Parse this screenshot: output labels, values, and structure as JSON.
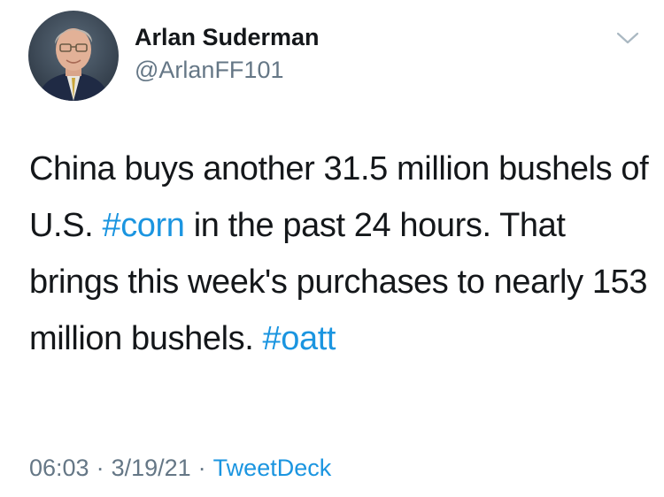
{
  "author": {
    "name": "Arlan Suderman",
    "handle": "@ArlanFF101"
  },
  "tweet": {
    "segments": [
      {
        "text": "China buys another 31.5 million bushels of U.S. ",
        "type": "text"
      },
      {
        "text": "#corn",
        "type": "hashtag"
      },
      {
        "text": " in the past 24 hours. That brings this week's purchases to nearly 153 million bushels. ",
        "type": "text"
      },
      {
        "text": "#oatt",
        "type": "hashtag"
      }
    ]
  },
  "meta": {
    "time": "06:03",
    "separator": "·",
    "date": "3/19/21",
    "source": "TweetDeck"
  },
  "icons": {
    "menu": "chevron-down-icon",
    "avatar": "profile-photo"
  },
  "colors": {
    "link": "#1b95e0",
    "secondary_text": "#657786",
    "primary_text": "#14171a"
  }
}
